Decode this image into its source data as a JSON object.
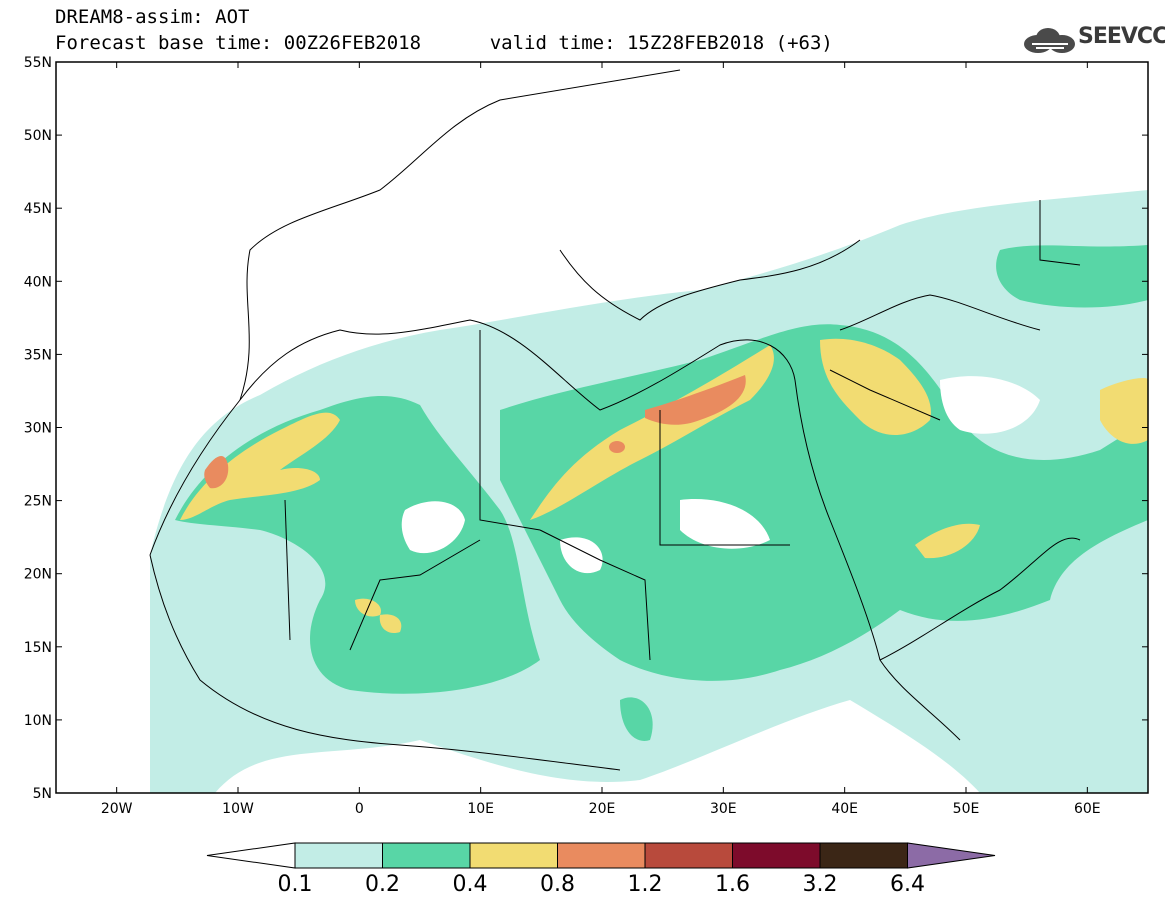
{
  "header": {
    "model_line": "DREAM8-assim: AOT",
    "base_time_label": "Forecast base time: 00Z26FEB2018",
    "valid_time_label": "valid time: 15Z28FEB2018 (+63)"
  },
  "logo": {
    "text": "SEEVCCC",
    "icon": "cloud-logo-icon"
  },
  "map": {
    "lon_range": [
      -25,
      65
    ],
    "lat_range": [
      5,
      55
    ],
    "lat_ticks": [
      "55N",
      "50N",
      "45N",
      "40N",
      "35N",
      "30N",
      "25N",
      "20N",
      "15N",
      "10N",
      "5N"
    ],
    "lon_ticks": [
      "20W",
      "10W",
      "0",
      "10E",
      "20E",
      "30E",
      "40E",
      "50E",
      "60E"
    ]
  },
  "colorbar": {
    "levels": [
      "0.1",
      "0.2",
      "0.4",
      "0.8",
      "1.2",
      "1.6",
      "3.2",
      "6.4"
    ],
    "colors": [
      "#ffffff",
      "#c2ede6",
      "#58d6a6",
      "#f2dc72",
      "#e98b5f",
      "#b84a3c",
      "#7d0b2b",
      "#3b2616",
      "#8c6ba6"
    ]
  }
}
